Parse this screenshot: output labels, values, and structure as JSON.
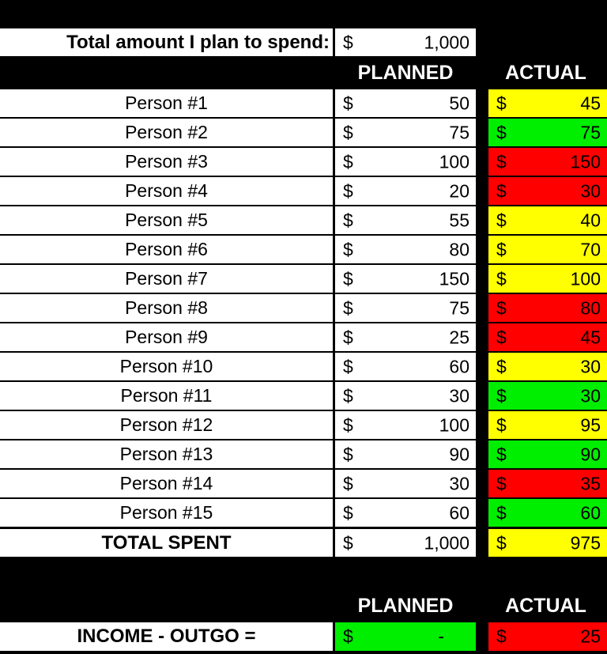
{
  "budget": {
    "label": "Total amount I plan to spend:",
    "currency": "$",
    "amount": "1,000"
  },
  "headers": {
    "planned": "PLANNED",
    "actual": "ACTUAL"
  },
  "rows": [
    {
      "name": "Person #1",
      "planned": "50",
      "actual": "45",
      "status": "yellow"
    },
    {
      "name": "Person #2",
      "planned": "75",
      "actual": "75",
      "status": "green"
    },
    {
      "name": "Person #3",
      "planned": "100",
      "actual": "150",
      "status": "red"
    },
    {
      "name": "Person #4",
      "planned": "20",
      "actual": "30",
      "status": "red"
    },
    {
      "name": "Person #5",
      "planned": "55",
      "actual": "40",
      "status": "yellow"
    },
    {
      "name": "Person #6",
      "planned": "80",
      "actual": "70",
      "status": "yellow"
    },
    {
      "name": "Person #7",
      "planned": "150",
      "actual": "100",
      "status": "yellow"
    },
    {
      "name": "Person #8",
      "planned": "75",
      "actual": "80",
      "status": "red"
    },
    {
      "name": "Person #9",
      "planned": "25",
      "actual": "45",
      "status": "red"
    },
    {
      "name": "Person #10",
      "planned": "60",
      "actual": "30",
      "status": "yellow"
    },
    {
      "name": "Person #11",
      "planned": "30",
      "actual": "30",
      "status": "green"
    },
    {
      "name": "Person #12",
      "planned": "100",
      "actual": "95",
      "status": "yellow"
    },
    {
      "name": "Person #13",
      "planned": "90",
      "actual": "90",
      "status": "green"
    },
    {
      "name": "Person #14",
      "planned": "30",
      "actual": "35",
      "status": "red"
    },
    {
      "name": "Person #15",
      "planned": "60",
      "actual": "60",
      "status": "green"
    }
  ],
  "total": {
    "label": "TOTAL SPENT",
    "planned": "1,000",
    "actual": "975",
    "status": "yellow"
  },
  "income": {
    "label": "INCOME - OUTGO =",
    "planned": "-",
    "actual": "25",
    "planned_status": "green",
    "actual_status": "red"
  },
  "currency": "$",
  "colors": {
    "yellow": "#ffff00",
    "green": "#00ee00",
    "red": "#ff0000"
  }
}
